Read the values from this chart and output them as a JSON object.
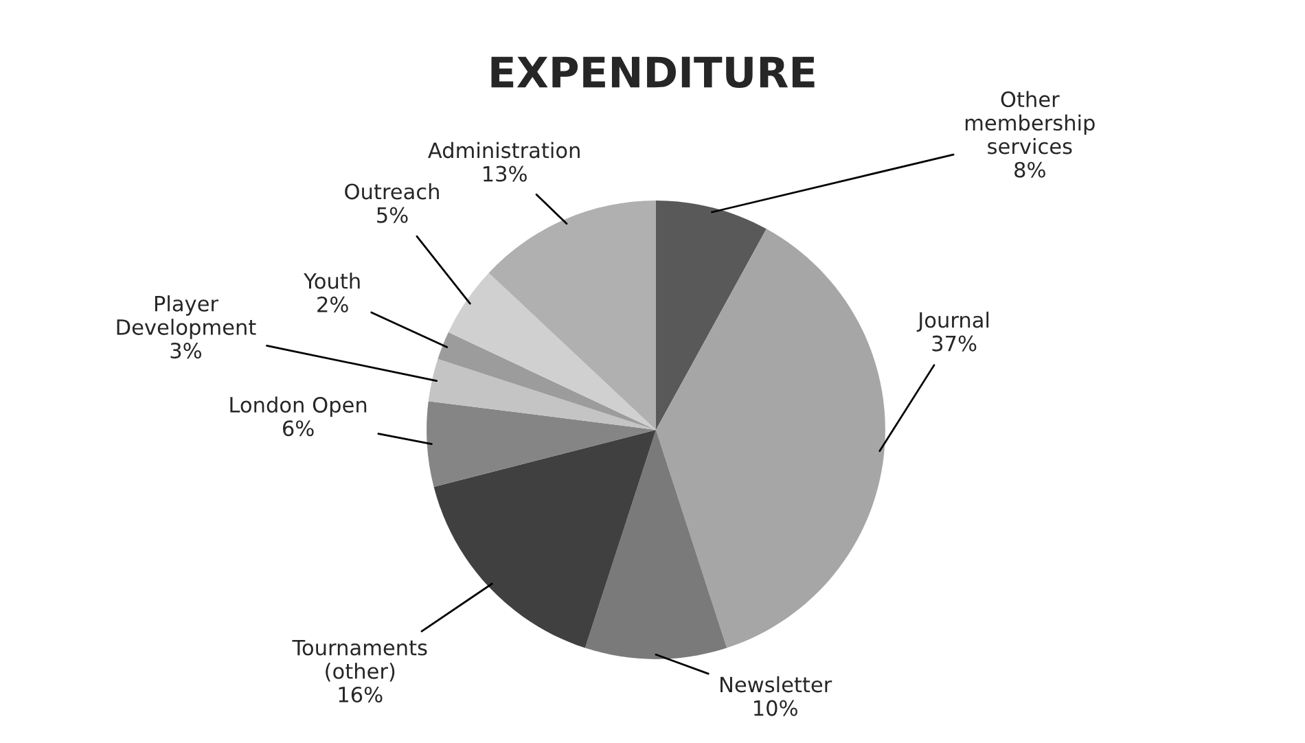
{
  "chart_data": {
    "type": "pie",
    "title": "EXPENDITURE",
    "categories": [
      "Other membership services",
      "Journal",
      "Newsletter",
      "Tournaments (other)",
      "London Open",
      "Player Development",
      "Youth",
      "Outreach",
      "Administration"
    ],
    "values": [
      8,
      37,
      10,
      16,
      6,
      3,
      2,
      5,
      13
    ],
    "value_labels": [
      "8%",
      "37%",
      "10%",
      "16%",
      "6%",
      "3%",
      "2%",
      "5%",
      "13%"
    ],
    "colors": [
      "#595959",
      "#a6a6a6",
      "#7a7a7a",
      "#404040",
      "#858585",
      "#c4c4c4",
      "#9c9c9c",
      "#d0d0d0",
      "#b0b0b0"
    ],
    "legend": false
  }
}
